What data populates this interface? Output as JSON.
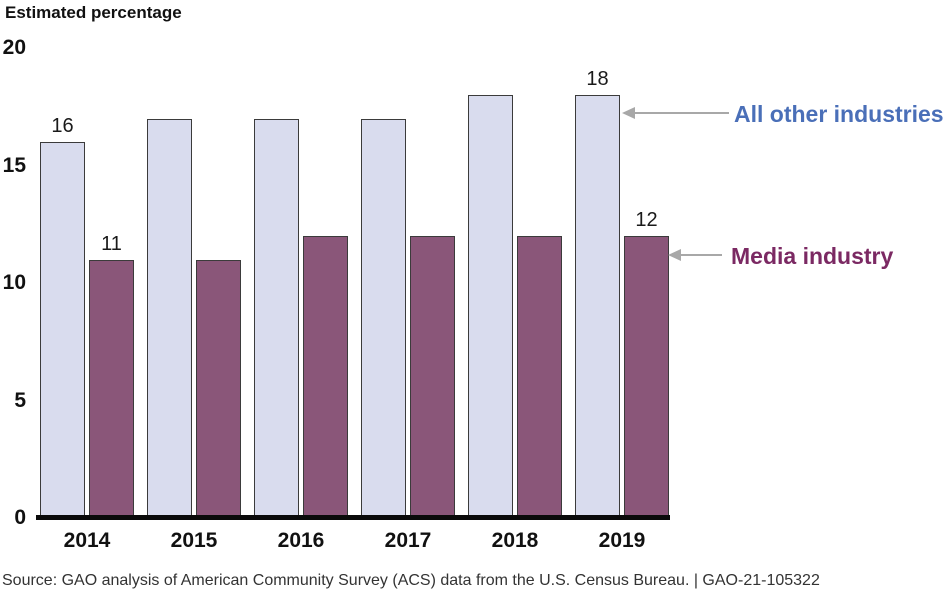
{
  "title": "Estimated percentage",
  "chart_data": {
    "type": "bar",
    "title": "Estimated percentage",
    "xlabel": "",
    "ylabel": "Estimated percentage",
    "categories": [
      "2014",
      "2015",
      "2016",
      "2017",
      "2018",
      "2019"
    ],
    "series": [
      {
        "name": "All other industries",
        "color": "#d9dcee",
        "values": [
          16,
          17,
          17,
          17,
          18,
          18
        ]
      },
      {
        "name": "Media industry",
        "color": "#8a5679",
        "values": [
          11,
          11,
          12,
          12,
          12,
          12
        ]
      }
    ],
    "ylim": [
      0,
      20
    ],
    "y_ticks": [
      0,
      5,
      10,
      15,
      20
    ],
    "grid": false,
    "legend_position": "right-side arrow annotations",
    "value_labels_shown": [
      {
        "series": "All other industries",
        "category": "2014",
        "value": 16
      },
      {
        "series": "Media industry",
        "category": "2014",
        "value": 11
      },
      {
        "series": "All other industries",
        "category": "2019",
        "value": 18
      },
      {
        "series": "Media industry",
        "category": "2019",
        "value": 12
      }
    ]
  },
  "legend": {
    "all_other_industries": {
      "label": "All other industries",
      "color": "#4a6fb8"
    },
    "media_industry": {
      "label": "Media industry",
      "color": "#7b2963"
    }
  },
  "source_note": "Source: GAO analysis of American Community Survey (ACS) data from the U.S. Census Bureau.  |  GAO-21-105322",
  "colors": {
    "bar_all_other_industries": "#d9dcee",
    "bar_media_industry": "#8a5679",
    "bar_border": "#3b3b3b",
    "arrow_gray": "#a8a8a8",
    "axis_line": "#0a0a0a"
  }
}
